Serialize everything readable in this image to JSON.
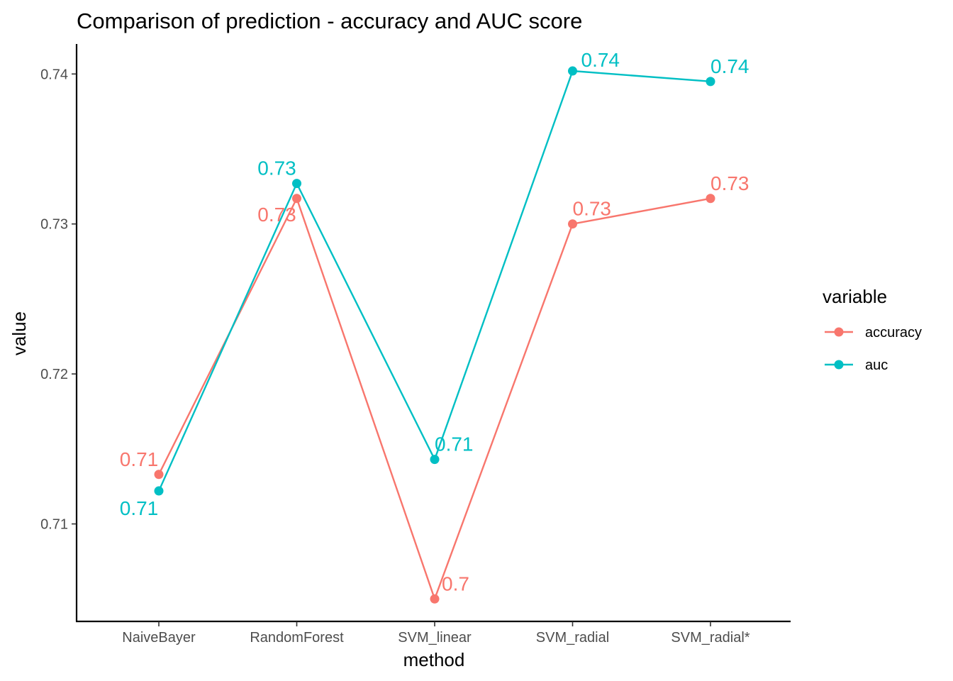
{
  "chart_data": {
    "type": "line",
    "title": "Comparison of prediction - accuracy and AUC score",
    "xlabel": "method",
    "ylabel": "value",
    "categories": [
      "NaiveBayer",
      "RandomForest",
      "SVM_linear",
      "SVM_radial",
      "SVM_radial*"
    ],
    "ylim": [
      0.7035,
      0.742
    ],
    "yticks": [
      0.71,
      0.72,
      0.73,
      0.74
    ],
    "ytick_labels": [
      "0.71",
      "0.72",
      "0.73",
      "0.74"
    ],
    "grid": false,
    "legend": {
      "title": "variable",
      "position": "right"
    },
    "series": [
      {
        "name": "accuracy",
        "color": "#F8766D",
        "values": [
          0.7133,
          0.7317,
          0.705,
          0.73,
          0.7317
        ],
        "labels": [
          "0.71",
          "0.73",
          "0.7",
          "0.73",
          "0.73"
        ]
      },
      {
        "name": "auc",
        "color": "#00BFC4",
        "values": [
          0.7122,
          0.7327,
          0.7143,
          0.7402,
          0.7395
        ],
        "labels": [
          "0.71",
          "0.73",
          "0.71",
          "0.74",
          "0.74"
        ]
      }
    ]
  }
}
